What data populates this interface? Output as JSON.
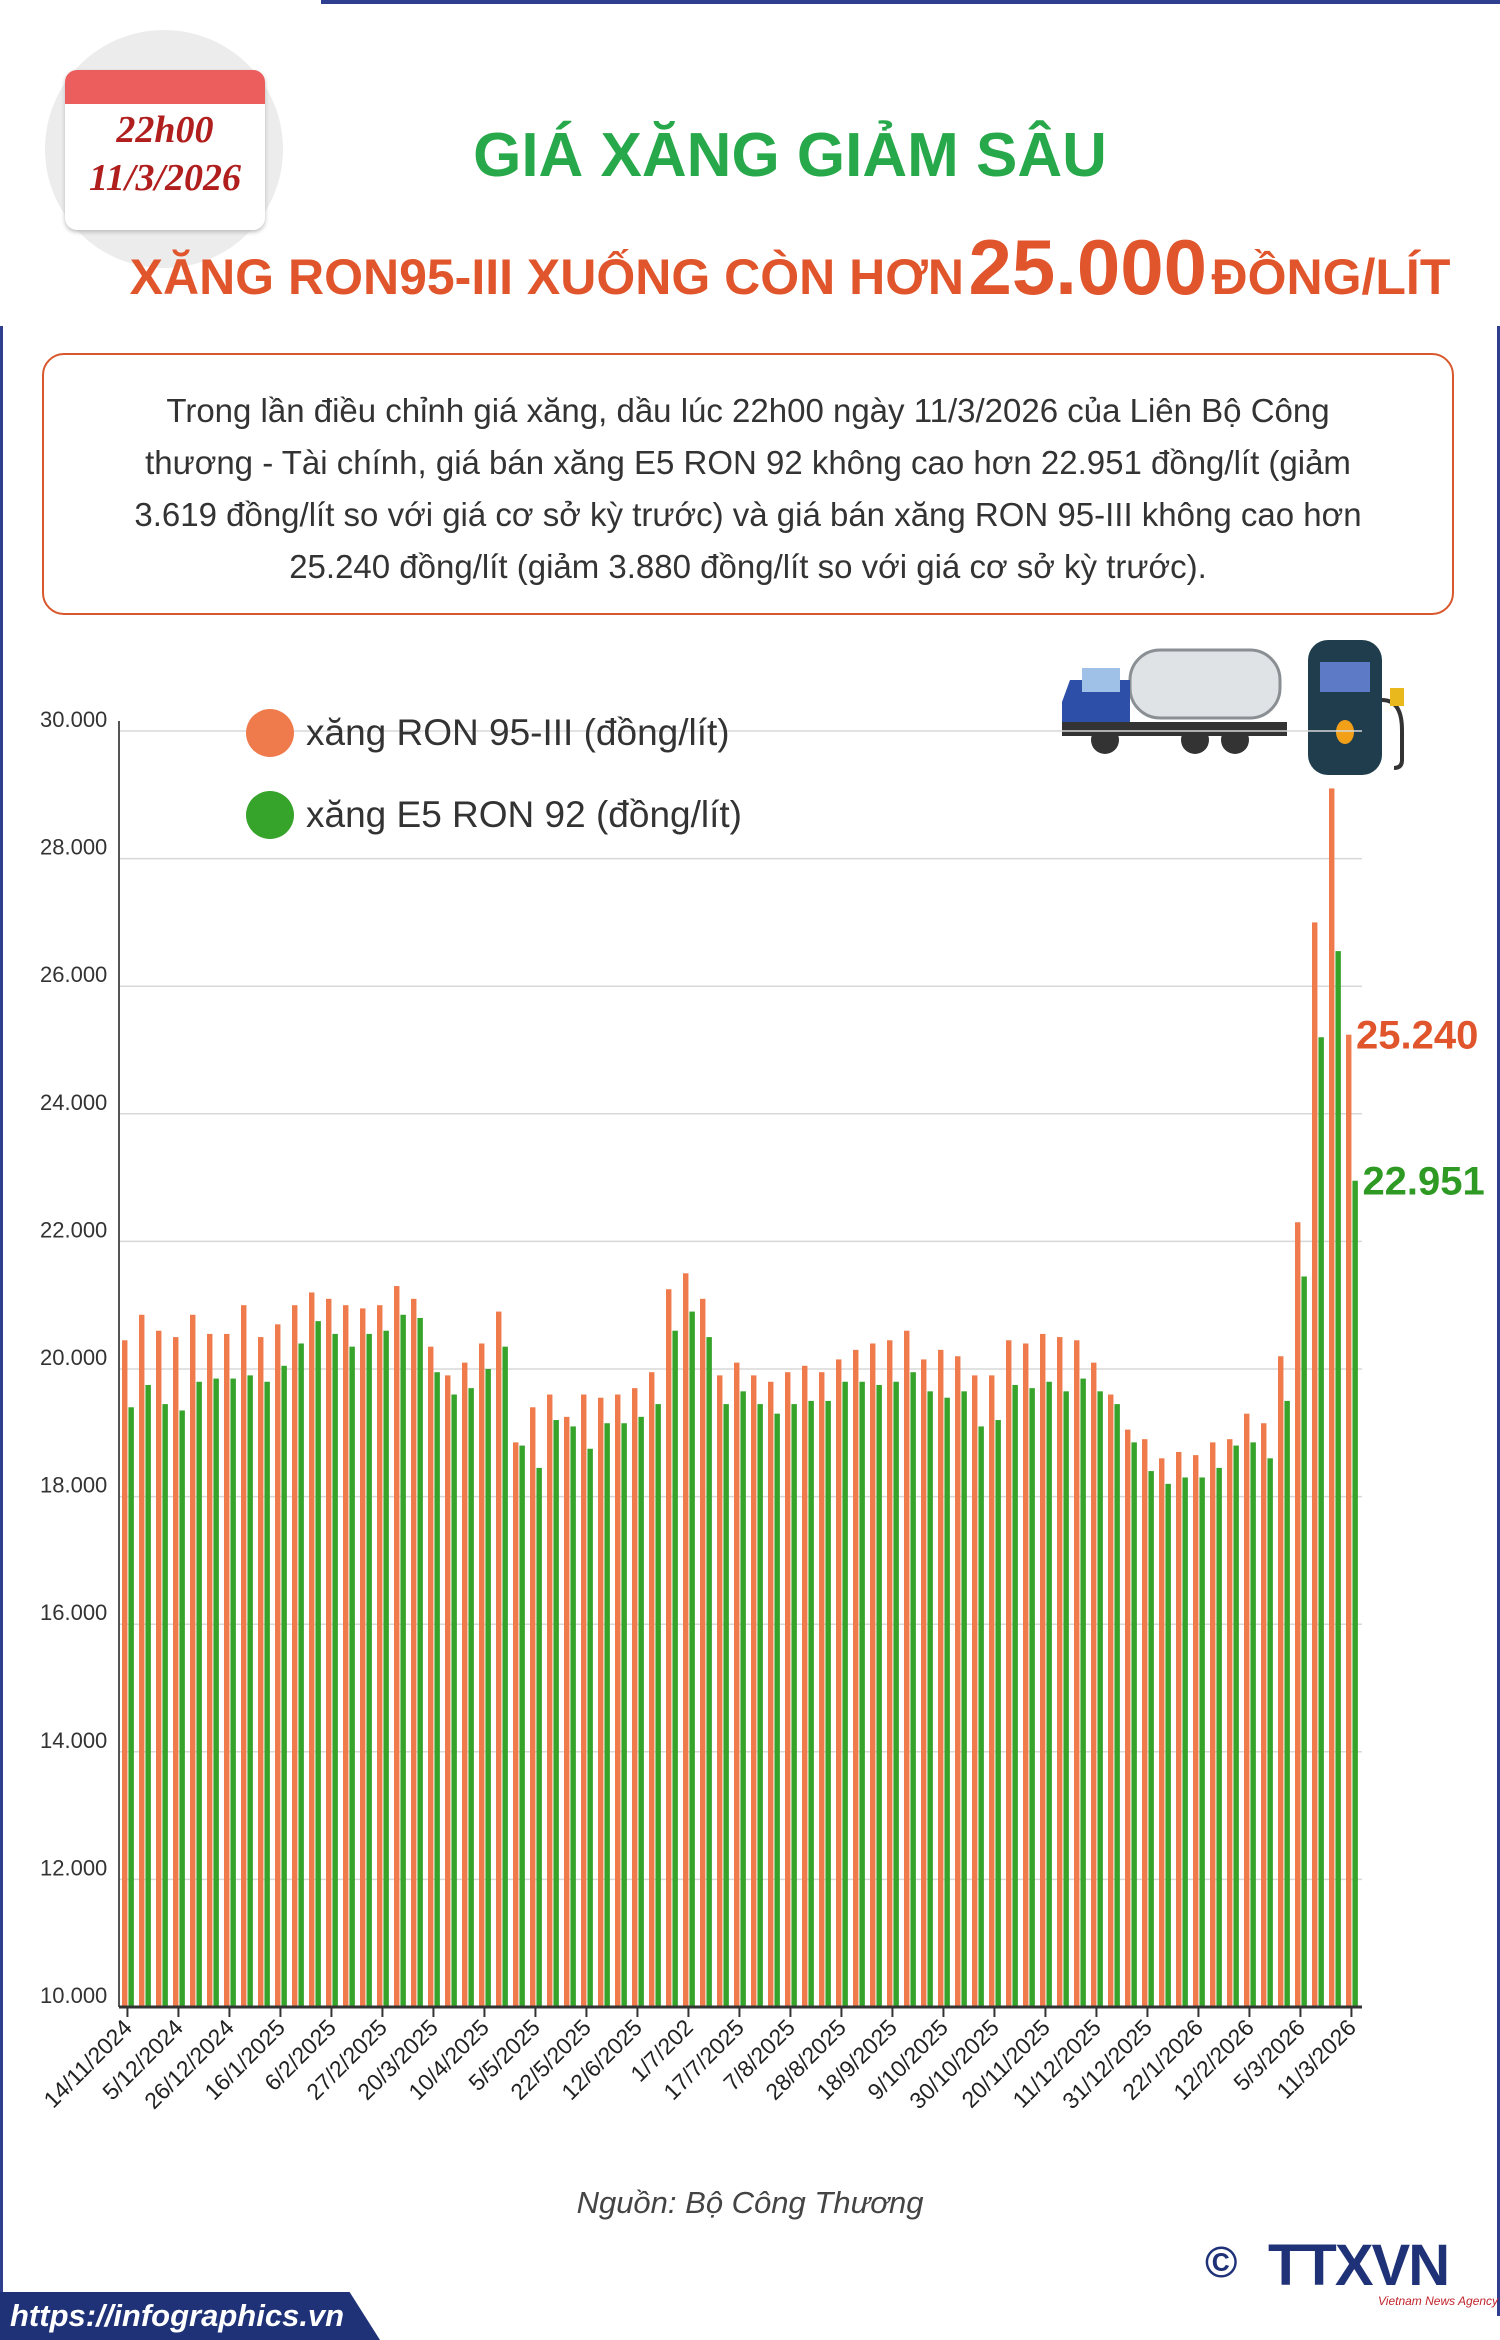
{
  "header": {
    "date_time": "22h00",
    "date": "11/3/2026",
    "title": "GIÁ XĂNG GIẢM SÂU",
    "subtitle_pre": "XĂNG RON95-III XUỐNG CÒN HƠN",
    "subtitle_number": "25.000",
    "subtitle_post": "ĐỒNG/LÍT"
  },
  "summary": [
    "Trong lần điều chỉnh giá xăng, dầu lúc 22h00 ngày 11/3/2026 của Liên Bộ Công",
    "thương - Tài chính, giá bán xăng E5 RON 92 không cao hơn 22.951 đồng/lít (giảm",
    "3.619 đồng/lít so với giá cơ sở kỳ trước) và giá bán xăng RON 95-III không cao hơn",
    "25.240 đồng/lít (giảm 3.880 đồng/lít so với giá cơ sở kỳ trước)."
  ],
  "chart_data": {
    "type": "bar",
    "categories": [
      "14/11/2024",
      null,
      null,
      "5/12/2024",
      null,
      null,
      "26/12/2024",
      null,
      null,
      "16/1/2025",
      null,
      null,
      "6/2/2025",
      null,
      null,
      "27/2/2025",
      null,
      null,
      "20/3/2025",
      null,
      null,
      "10/4/2025",
      null,
      null,
      "5/5/2025",
      null,
      null,
      "22/5/2025",
      null,
      null,
      "12/6/2025",
      null,
      null,
      "1/7/202",
      null,
      null,
      "17/7/2025",
      null,
      null,
      "7/8/2025",
      null,
      null,
      "28/8/2025",
      null,
      null,
      "18/9/2025",
      null,
      null,
      "9/10/2025",
      null,
      null,
      "30/10/2025",
      null,
      null,
      "20/11/2025",
      null,
      null,
      "11/12/2025",
      null,
      null,
      "31/12/2025",
      null,
      null,
      "22/1/2026",
      null,
      null,
      "12/2/2026",
      null,
      null,
      "5/3/2026",
      null,
      null,
      "11/3/2026"
    ],
    "series": [
      {
        "name": "xăng RON 95-III (đồng/lít)",
        "color": "#ef7a4b",
        "values": [
          20450,
          20850,
          20600,
          20500,
          20850,
          20550,
          20550,
          21000,
          20500,
          20700,
          21000,
          21200,
          21100,
          21000,
          20950,
          21000,
          21300,
          21100,
          20350,
          19900,
          20100,
          20400,
          20900,
          18850,
          19400,
          19600,
          19250,
          19600,
          19550,
          19600,
          19700,
          19950,
          21250,
          21500,
          21100,
          19900,
          20100,
          19900,
          19800,
          19950,
          20050,
          19950,
          20150,
          20300,
          20400,
          20450,
          20600,
          20150,
          20300,
          20200,
          19900,
          19900,
          20450,
          20400,
          20550,
          20500,
          20450,
          20100,
          19600,
          19050,
          18900,
          18600,
          18700,
          18650,
          18850,
          18900,
          19300,
          19150,
          20200,
          22300,
          27000,
          29100,
          25240
        ],
        "value_labels": [
          null,
          null,
          null,
          null,
          null,
          null,
          null,
          null,
          null,
          null,
          null,
          null,
          null,
          null,
          null,
          null,
          null,
          null,
          null,
          null,
          null,
          null,
          null,
          null,
          null,
          null,
          null,
          null,
          null,
          null,
          null,
          null,
          null,
          null,
          null,
          null,
          null,
          null,
          null,
          null,
          null,
          null,
          null,
          null,
          null,
          null,
          null,
          null,
          null,
          null,
          null,
          null,
          null,
          null,
          null,
          null,
          null,
          null,
          null,
          null,
          null,
          null,
          null,
          null,
          null,
          null,
          null,
          null,
          null,
          null,
          null,
          null,
          "25.240"
        ]
      },
      {
        "name": "xăng E5 RON 92 (đồng/lít)",
        "color": "#36a32a",
        "values": [
          19400,
          19750,
          19450,
          19350,
          19800,
          19850,
          19850,
          19900,
          19800,
          20050,
          20400,
          20750,
          20550,
          20350,
          20550,
          20600,
          20850,
          20800,
          19950,
          19600,
          19700,
          20000,
          20350,
          18800,
          18450,
          19200,
          19100,
          18750,
          19150,
          19150,
          19250,
          19450,
          20600,
          20900,
          20500,
          19450,
          19650,
          19450,
          19300,
          19450,
          19500,
          19500,
          19800,
          19800,
          19750,
          19800,
          19950,
          19650,
          19550,
          19650,
          19100,
          19200,
          19750,
          19700,
          19800,
          19650,
          19850,
          19650,
          19450,
          18850,
          18400,
          18200,
          18300,
          18300,
          18450,
          18800,
          18850,
          18600,
          19500,
          21450,
          25200,
          26550,
          22951
        ],
        "value_labels": [
          null,
          null,
          null,
          null,
          null,
          null,
          null,
          null,
          null,
          null,
          null,
          null,
          null,
          null,
          null,
          null,
          null,
          null,
          null,
          null,
          null,
          null,
          null,
          null,
          null,
          null,
          null,
          null,
          null,
          null,
          null,
          null,
          null,
          null,
          null,
          null,
          null,
          null,
          null,
          null,
          null,
          null,
          null,
          null,
          null,
          null,
          null,
          null,
          null,
          null,
          null,
          null,
          null,
          null,
          null,
          null,
          null,
          null,
          null,
          null,
          null,
          null,
          null,
          null,
          null,
          null,
          null,
          null,
          null,
          null,
          null,
          null,
          "22.951"
        ]
      }
    ],
    "ylim": [
      10000,
      30000
    ],
    "yticks": [
      {
        "value": 10000,
        "label": "10.000"
      },
      {
        "value": 12000,
        "label": "12.000"
      },
      {
        "value": 14000,
        "label": "14.000"
      },
      {
        "value": 16000,
        "label": "16.000"
      },
      {
        "value": 18000,
        "label": "18.000"
      },
      {
        "value": 20000,
        "label": "20.000"
      },
      {
        "value": 22000,
        "label": "22.000"
      },
      {
        "value": 24000,
        "label": "24.000"
      },
      {
        "value": 26000,
        "label": "26.000"
      },
      {
        "value": 28000,
        "label": "28.000"
      },
      {
        "value": 30000,
        "label": "30.000"
      }
    ],
    "grid": true
  },
  "footer": {
    "source": "Nguồn: Bộ Công Thương",
    "url": "https://infographics.vn",
    "copyright": "©",
    "logo": "TTXVN",
    "agency": "Vietnam News Agency"
  }
}
